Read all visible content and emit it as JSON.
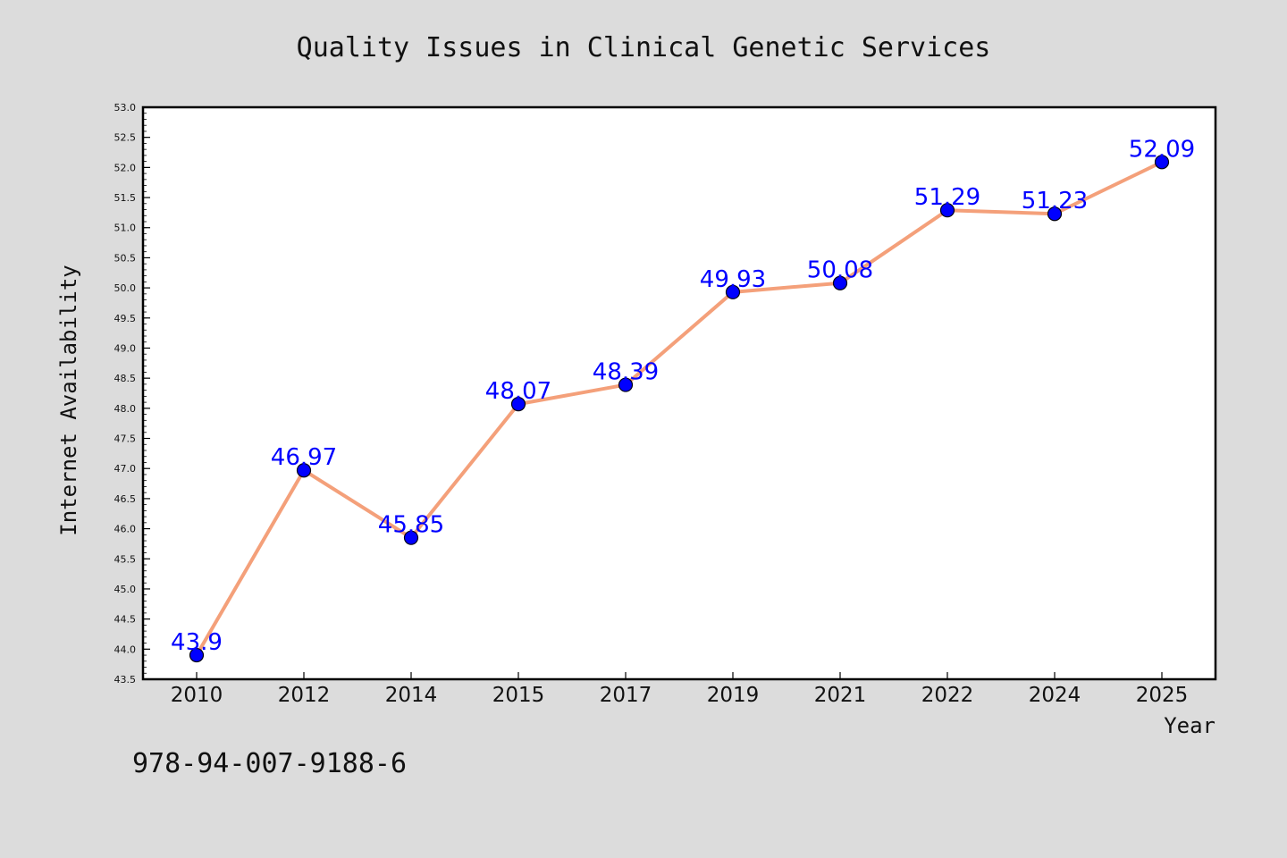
{
  "chart_data": {
    "type": "line",
    "title": "Quality Issues in Clinical Genetic Services",
    "xlabel": "Year",
    "ylabel": "Internet Availability",
    "categories": [
      "2010",
      "2012",
      "2014",
      "2015",
      "2017",
      "2019",
      "2021",
      "2022",
      "2024",
      "2025"
    ],
    "values": [
      43.9,
      46.97,
      45.85,
      48.07,
      48.39,
      49.93,
      50.08,
      51.29,
      51.23,
      52.09
    ],
    "data_labels": [
      "43.9",
      "46.97",
      "45.85",
      "48.07",
      "48.39",
      "49.93",
      "50.08",
      "51.29",
      "51.23",
      "52.09"
    ],
    "ylim": [
      43.5,
      53.0
    ],
    "yticks": [
      "43.5",
      "44.0",
      "44.5",
      "45.0",
      "45.5",
      "46.0",
      "46.5",
      "47.0",
      "47.5",
      "48.0",
      "48.5",
      "49.0",
      "49.5",
      "50.0",
      "50.5",
      "51.0",
      "51.5",
      "52.0",
      "52.5",
      "53.0"
    ],
    "grid": false,
    "line_color": "#f4a07a",
    "marker_color": "#0000ff",
    "label_color": "#0000ff",
    "background_color": "#dcdcdc",
    "plot_background_color": "#ffffff"
  },
  "footer": {
    "code": "978-94-007-9188-6"
  }
}
